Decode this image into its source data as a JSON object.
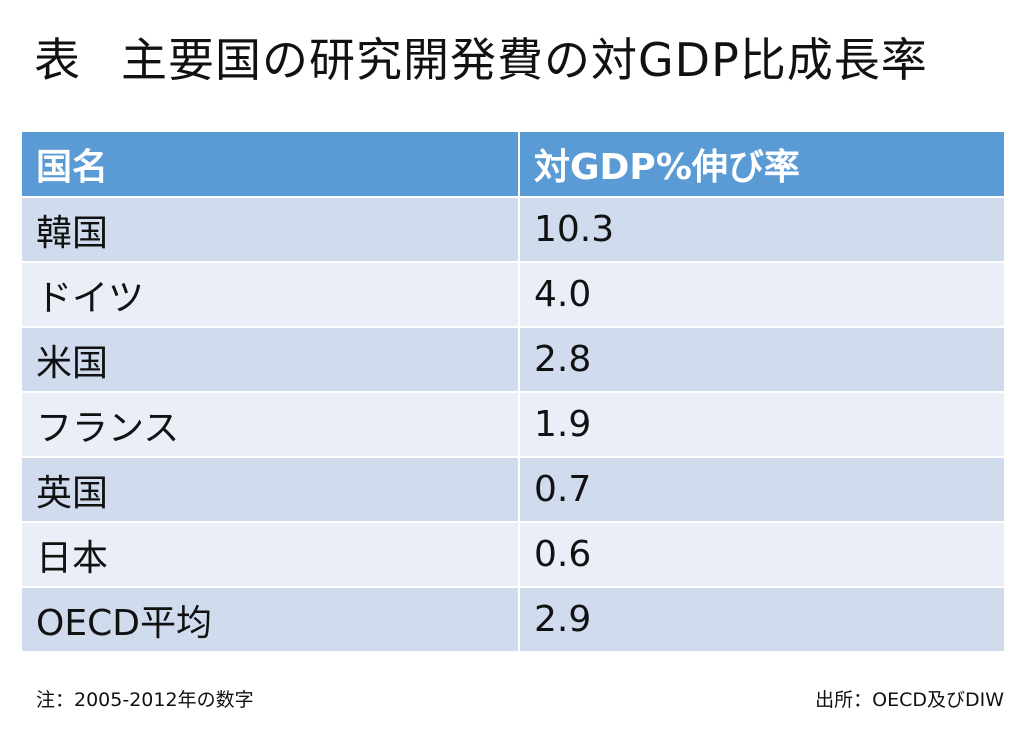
{
  "title": {
    "prefix": "表",
    "text": "主要国の研究開発費の対GDP比成長率"
  },
  "table": {
    "headers": [
      "国名",
      "対GDP%伸び率"
    ],
    "rows": [
      {
        "country": "韓国",
        "value": "10.3"
      },
      {
        "country": "ドイツ",
        "value": "4.0"
      },
      {
        "country": "米国",
        "value": "2.8"
      },
      {
        "country": "フランス",
        "value": "1.9"
      },
      {
        "country": "英国",
        "value": "0.7"
      },
      {
        "country": "日本",
        "value": "0.6"
      },
      {
        "country": "OECD平均",
        "value": "2.9"
      }
    ]
  },
  "footer": {
    "note": "注：2005-2012年の数字",
    "source": "出所：OECD及びDIW"
  },
  "colors": {
    "header_bg": "#5b9bd5",
    "row_dark": "#d0dbee",
    "row_light": "#e9eef7"
  }
}
